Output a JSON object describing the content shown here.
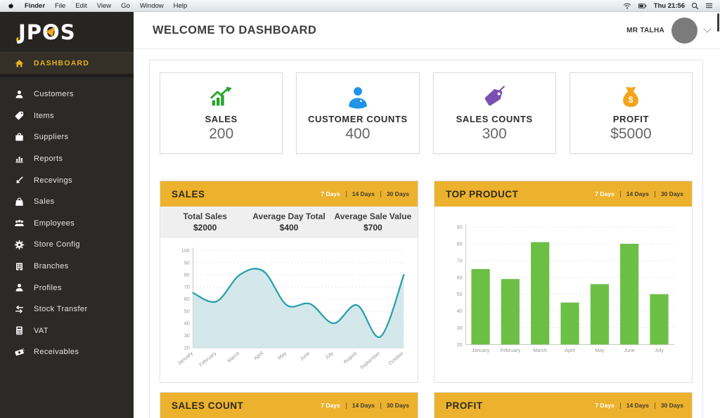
{
  "menu_bar": {
    "left_items": [
      "Finder",
      "File",
      "Edit",
      "View",
      "Go",
      "Window",
      "Help"
    ],
    "time": "Thu 21:56"
  },
  "sidebar": {
    "logo_text": "JPOS",
    "active_item": {
      "label": "DASHBOARD",
      "icon": "home"
    },
    "items": [
      {
        "label": "Customers",
        "icon": "user"
      },
      {
        "label": "Items",
        "icon": "tag"
      },
      {
        "label": "Suppliers",
        "icon": "briefcase"
      },
      {
        "label": "Reports",
        "icon": "bar-chart"
      },
      {
        "label": "Recevings",
        "icon": "arrow-down-left"
      },
      {
        "label": "Sales",
        "icon": "shopping-bag"
      },
      {
        "label": "Employees",
        "icon": "users"
      },
      {
        "label": "Store Config",
        "icon": "gear"
      },
      {
        "label": "Branches",
        "icon": "building"
      },
      {
        "label": "Profiles",
        "icon": "profile"
      },
      {
        "label": "Stock Transfer",
        "icon": "transfer-arrows"
      },
      {
        "label": "VAT",
        "icon": "calculator"
      },
      {
        "label": "Receivables",
        "icon": "money"
      }
    ]
  },
  "header": {
    "title": "WELCOME TO DASHBOARD",
    "user_name": "MR TALHA"
  },
  "stats": [
    {
      "label": "SALES",
      "value": "200",
      "icon": "growth-chart",
      "color": "#27a32b"
    },
    {
      "label": "CUSTOMER COUNTS",
      "value": "400",
      "icon": "person",
      "color": "#2193e8"
    },
    {
      "label": "SALES COUNTS",
      "value": "300",
      "icon": "price-tag",
      "color": "#7b4fb0"
    },
    {
      "label": "PROFIT",
      "value": "$5000",
      "icon": "money-bag",
      "color": "#f6a41b"
    }
  ],
  "day_filters": [
    "7 Days",
    "14 Days",
    "30 Days"
  ],
  "active_filter": "7 Days",
  "panels": {
    "sales": {
      "title": "SALES",
      "summary": [
        {
          "label": "Total Sales",
          "value": "$2000"
        },
        {
          "label": "Average Day Total",
          "value": "$400"
        },
        {
          "label": "Average Sale Value",
          "value": "$700"
        }
      ]
    },
    "top_product": {
      "title": "TOP PRODUCT"
    },
    "sales_count": {
      "title": "SALES COUNT"
    },
    "profit": {
      "title": "PROFIT"
    }
  },
  "chart_data": [
    {
      "name": "sales-trend",
      "type": "area",
      "x": [
        "January",
        "February",
        "March",
        "April",
        "May",
        "June",
        "July",
        "August",
        "September",
        "October"
      ],
      "values": [
        65,
        58,
        80,
        83,
        55,
        56,
        40,
        55,
        29,
        80
      ],
      "ylim": [
        20,
        100
      ],
      "ytick_step": 10,
      "grid": true,
      "legend": "none",
      "line_color": "#2aa1ab",
      "fill_color": "#cde4e8"
    },
    {
      "name": "top-product",
      "type": "bar",
      "categories": [
        "January",
        "February",
        "March",
        "April",
        "May",
        "June",
        "July"
      ],
      "values": [
        65,
        59,
        81,
        45,
        56,
        80,
        50
      ],
      "ylim": [
        20,
        90
      ],
      "ytick_step": 10,
      "grid": true,
      "legend": "none",
      "bar_color": "#6cbf45"
    }
  ],
  "colors": {
    "accent_yellow": "#ecb22d",
    "sidebar_bg": "#2b2a27",
    "sidebar_active_text": "#e9b11c",
    "stat_green": "#27a32b",
    "stat_blue": "#2193e8",
    "stat_purple": "#7b4fb0",
    "stat_orange": "#f6a41b"
  }
}
